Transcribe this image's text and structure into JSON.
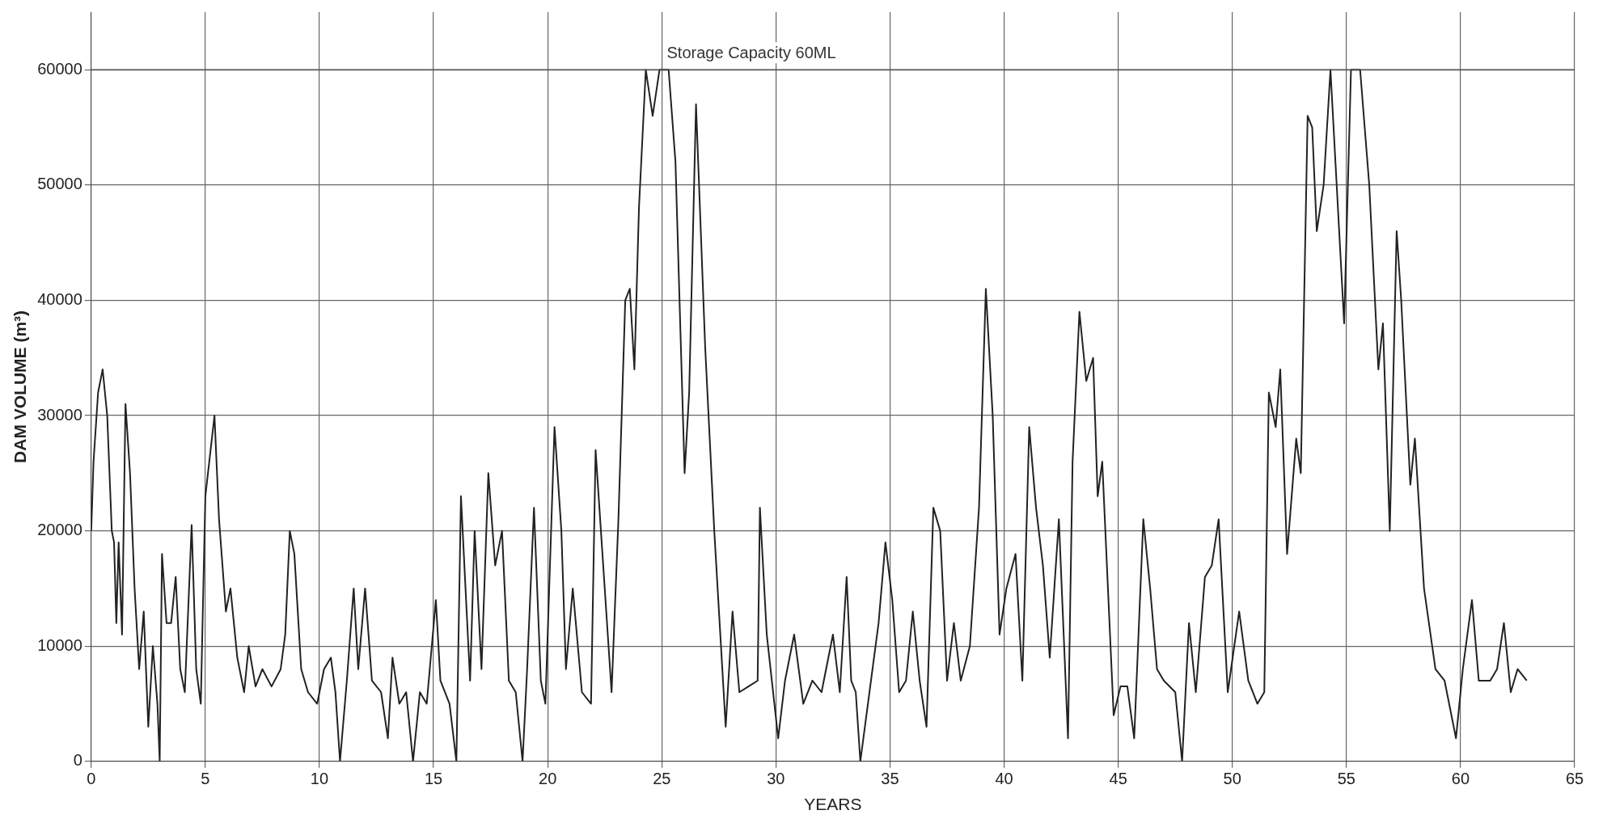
{
  "chart_data": {
    "type": "line",
    "xlabel": "YEARS",
    "ylabel": "DAM VOLUME (m³)",
    "x": [
      0,
      0.1,
      0.3,
      0.5,
      0.7,
      0.9,
      1.0,
      1.1,
      1.2,
      1.35,
      1.5,
      1.7,
      1.9,
      2.1,
      2.3,
      2.5,
      2.7,
      2.9,
      3.0,
      3.1,
      3.3,
      3.5,
      3.7,
      3.9,
      4.1,
      4.4,
      4.6,
      4.8,
      5.0,
      5.4,
      5.6,
      5.9,
      6.1,
      6.4,
      6.7,
      6.9,
      7.2,
      7.5,
      7.9,
      8.3,
      8.5,
      8.7,
      8.9,
      9.2,
      9.5,
      9.9,
      10.2,
      10.5,
      10.7,
      10.9,
      11.2,
      11.5,
      11.7,
      12.0,
      12.3,
      12.7,
      13.0,
      13.2,
      13.5,
      13.8,
      14.1,
      14.4,
      14.7,
      15.1,
      15.3,
      15.7,
      16.0,
      16.2,
      16.6,
      16.8,
      17.1,
      17.4,
      17.7,
      18.0,
      18.3,
      18.6,
      18.9,
      19.1,
      19.4,
      19.7,
      19.9,
      20.3,
      20.6,
      20.8,
      21.1,
      21.5,
      21.9,
      22.1,
      22.4,
      22.8,
      23.1,
      23.4,
      23.6,
      23.8,
      24.0,
      24.3,
      24.6,
      24.9,
      25.3,
      25.6,
      26.0,
      26.2,
      26.5,
      26.9,
      27.3,
      27.8,
      28.1,
      28.4,
      28.8,
      29.2,
      29.3,
      29.6,
      30.1,
      30.4,
      30.8,
      31.2,
      31.6,
      32.0,
      32.5,
      32.8,
      33.1,
      33.3,
      33.5,
      33.7,
      34.1,
      34.5,
      34.8,
      35.1,
      35.4,
      35.7,
      36.0,
      36.3,
      36.6,
      36.9,
      37.2,
      37.5,
      37.8,
      38.1,
      38.5,
      38.9,
      39.2,
      39.5,
      39.8,
      40.1,
      40.5,
      40.8,
      41.1,
      41.4,
      41.7,
      42.0,
      42.4,
      42.8,
      43.0,
      43.3,
      43.6,
      43.9,
      44.1,
      44.3,
      44.8,
      45.1,
      45.4,
      45.7,
      46.1,
      46.4,
      46.7,
      47.0,
      47.5,
      47.8,
      48.1,
      48.4,
      48.8,
      49.1,
      49.4,
      49.8,
      50.3,
      50.7,
      51.1,
      51.4,
      51.6,
      51.9,
      52.1,
      52.4,
      52.8,
      53.0,
      53.3,
      53.5,
      53.7,
      54.0,
      54.3,
      54.9,
      55.2,
      55.6,
      56.0,
      56.4,
      56.6,
      56.9,
      57.2,
      57.4,
      57.8,
      58.0,
      58.4,
      58.9,
      59.3,
      59.8,
      60.1,
      60.5,
      60.8,
      61.3,
      61.6,
      61.9,
      62.2,
      62.5,
      62.9
    ],
    "series": [
      {
        "color": "#222222",
        "values": [
          20000,
          26000,
          32000,
          34000,
          30000,
          20000,
          19000,
          12000,
          19000,
          11000,
          31000,
          25000,
          15000,
          8000,
          13000,
          3000,
          10000,
          5000,
          0,
          18000,
          12000,
          12000,
          16000,
          8000,
          6000,
          20500,
          8000,
          5000,
          23000,
          30000,
          21000,
          13000,
          15000,
          9000,
          6000,
          10000,
          6500,
          8000,
          6500,
          8000,
          11000,
          20000,
          18000,
          8000,
          6000,
          5000,
          8000,
          9000,
          6000,
          0,
          7000,
          15000,
          8000,
          15000,
          7000,
          6000,
          2000,
          9000,
          5000,
          6000,
          0,
          6000,
          5000,
          14000,
          7000,
          5000,
          0,
          23000,
          7000,
          20000,
          8000,
          25000,
          17000,
          20000,
          7000,
          6000,
          0,
          8000,
          22000,
          7000,
          5000,
          29000,
          20000,
          8000,
          15000,
          6000,
          5000,
          27000,
          18000,
          6000,
          21000,
          40000,
          41000,
          34000,
          48000,
          60000,
          56000,
          60000,
          60000,
          52000,
          25000,
          32000,
          57000,
          36000,
          20000,
          3000,
          13000,
          6000,
          6500,
          7000,
          22000,
          11000,
          2000,
          7000,
          11000,
          5000,
          7000,
          6000,
          11000,
          6000,
          16000,
          7000,
          6000,
          0,
          6000,
          12000,
          19000,
          14000,
          6000,
          7000,
          13000,
          7000,
          3000,
          22000,
          20000,
          7000,
          12000,
          7000,
          10000,
          22000,
          41000,
          30000,
          11000,
          15000,
          18000,
          7000,
          29000,
          22000,
          17000,
          9000,
          21000,
          2000,
          26000,
          39000,
          33000,
          35000,
          23000,
          26000,
          4000,
          6500,
          6500,
          2000,
          21000,
          15000,
          8000,
          7000,
          6000,
          0,
          12000,
          6000,
          16000,
          17000,
          21000,
          6000,
          13000,
          7000,
          5000,
          6000,
          32000,
          29000,
          34000,
          18000,
          28000,
          25000,
          56000,
          55000,
          46000,
          50000,
          60000,
          38000,
          60000,
          60000,
          50000,
          34000,
          38000,
          20000,
          46000,
          40000,
          24000,
          28000,
          15000,
          8000,
          7000,
          2000,
          8000,
          14000,
          7000,
          7000,
          8000,
          12000,
          6000,
          8000,
          7000
        ]
      }
    ],
    "xlim": [
      0,
      65
    ],
    "xticks": [
      0,
      5,
      10,
      15,
      20,
      25,
      30,
      35,
      40,
      45,
      50,
      55,
      60,
      65
    ],
    "ylim": [
      0,
      65000
    ],
    "yticks": [
      0,
      10000,
      20000,
      30000,
      40000,
      50000,
      60000
    ],
    "grid": true,
    "legend": false,
    "marker": "none",
    "line_style": "solid",
    "ref_lines": [
      {
        "axis": "y",
        "value": 60000,
        "label": "Storage Capacity 60ML",
        "color": "#555555"
      }
    ]
  }
}
